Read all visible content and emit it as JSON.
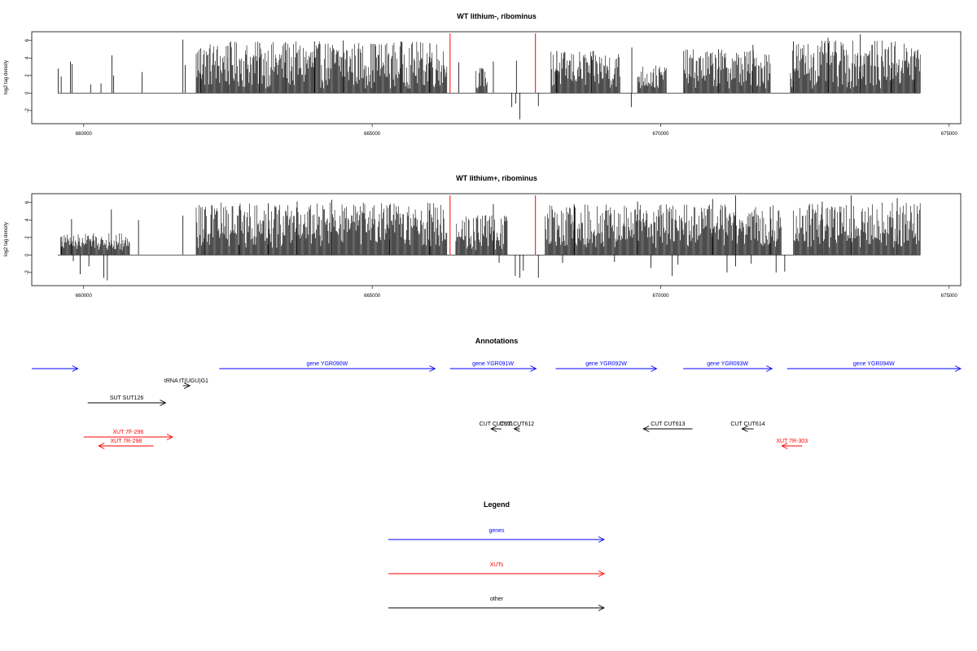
{
  "chart_data": [
    {
      "type": "bar",
      "title": "WT lithium-, ribominus",
      "xlabel": "",
      "ylabel": "log2 tag density",
      "xlim": [
        659100,
        675200
      ],
      "ylim": [
        -3.5,
        7
      ],
      "x_ticks": [
        {
          "value": 660000,
          "label": "660000"
        },
        {
          "value": 665000,
          "label": "665000"
        },
        {
          "value": 670000,
          "label": "670000"
        },
        {
          "value": 675000,
          "label": "675000"
        }
      ],
      "y_ticks": [
        {
          "value": 6,
          "label": "6"
        },
        {
          "value": 4,
          "label": "4"
        },
        {
          "value": 2,
          "label": "2"
        },
        {
          "value": 0,
          "label": "0"
        },
        {
          "value": -2,
          "label": "-2"
        }
      ],
      "baseline_range": [
        659550,
        674500
      ],
      "red_markers": [
        {
          "x": 666350,
          "y": 6.8
        },
        {
          "x": 667830,
          "y": 6.8
        }
      ],
      "positive_spikes": [
        [
          659560,
          2.8
        ],
        [
          659610,
          1.9
        ],
        [
          659770,
          3.6
        ],
        [
          659800,
          3.3
        ],
        [
          660120,
          1.0
        ],
        [
          660300,
          1.1
        ],
        [
          660490,
          4.3
        ],
        [
          660520,
          2.0
        ],
        [
          661010,
          2.4
        ],
        [
          661720,
          6.1
        ],
        [
          661760,
          3.2
        ],
        [
          662030,
          5.1
        ],
        [
          662500,
          5.4
        ],
        [
          663050,
          5.7
        ],
        [
          663500,
          5.8
        ],
        [
          664000,
          5.9
        ],
        [
          664500,
          6.0
        ],
        [
          665050,
          5.6
        ],
        [
          665500,
          5.9
        ],
        [
          666000,
          5.7
        ],
        [
          666500,
          3.5
        ],
        [
          667100,
          3.6
        ],
        [
          667500,
          3.7
        ],
        [
          668200,
          4.8
        ],
        [
          668800,
          4.2
        ],
        [
          669500,
          5.2
        ],
        [
          670400,
          4.8
        ],
        [
          671000,
          5.0
        ],
        [
          671600,
          5.5
        ],
        [
          672300,
          5.9
        ],
        [
          672900,
          6.3
        ],
        [
          673460,
          6.7
        ],
        [
          674000,
          5.8
        ],
        [
          674400,
          4.4
        ]
      ],
      "negative_spikes": [
        [
          667420,
          -1.6
        ],
        [
          667490,
          -1.2
        ],
        [
          667560,
          -3.0
        ],
        [
          667880,
          -1.5
        ],
        [
          669490,
          -1.6
        ]
      ],
      "dense_regions": [
        {
          "from": 661950,
          "to": 666300,
          "min": 0.5,
          "max": 5.9
        },
        {
          "from": 666800,
          "to": 667000,
          "min": 0.5,
          "max": 3.0
        },
        {
          "from": 668100,
          "to": 669300,
          "min": 0.5,
          "max": 4.8
        },
        {
          "from": 669600,
          "to": 670100,
          "min": 0.3,
          "max": 3.2
        },
        {
          "from": 670400,
          "to": 671900,
          "min": 0.5,
          "max": 5.0
        },
        {
          "from": 672250,
          "to": 674500,
          "min": 0.5,
          "max": 6.0
        }
      ]
    },
    {
      "type": "bar",
      "title": "WT lithium+, ribominus",
      "xlabel": "",
      "ylabel": "log2 tag density",
      "xlim": [
        659100,
        675200
      ],
      "ylim": [
        -3.5,
        7
      ],
      "x_ticks": [
        {
          "value": 660000,
          "label": "660000"
        },
        {
          "value": 665000,
          "label": "665000"
        },
        {
          "value": 670000,
          "label": "670000"
        },
        {
          "value": 675000,
          "label": "675000"
        }
      ],
      "y_ticks": [
        {
          "value": 6,
          "label": "6"
        },
        {
          "value": 4,
          "label": "4"
        },
        {
          "value": 2,
          "label": "2"
        },
        {
          "value": 0,
          "label": "0"
        },
        {
          "value": -2,
          "label": "-2"
        }
      ],
      "baseline_range": [
        659550,
        674500
      ],
      "red_markers": [
        {
          "x": 666350,
          "y": 6.8
        },
        {
          "x": 667830,
          "y": 6.8
        }
      ],
      "positive_spikes": [
        [
          659620,
          2.1
        ],
        [
          659790,
          4.1
        ],
        [
          660120,
          1.8
        ],
        [
          660480,
          5.2
        ],
        [
          660950,
          4.0
        ],
        [
          661720,
          4.5
        ],
        [
          662100,
          5.2
        ],
        [
          662700,
          5.6
        ],
        [
          663200,
          5.9
        ],
        [
          663700,
          6.1
        ],
        [
          664300,
          6.3
        ],
        [
          665300,
          5.7
        ],
        [
          666000,
          5.9
        ],
        [
          667100,
          5.8
        ],
        [
          668500,
          5.8
        ],
        [
          669600,
          6.1
        ],
        [
          670900,
          6.4
        ],
        [
          671300,
          6.8
        ],
        [
          671900,
          5.5
        ],
        [
          672800,
          6.1
        ],
        [
          673300,
          6.8
        ],
        [
          674100,
          6.5
        ]
      ],
      "negative_spikes": [
        [
          659820,
          -0.7
        ],
        [
          659940,
          -2.2
        ],
        [
          660090,
          -1.3
        ],
        [
          660350,
          -2.6
        ],
        [
          660410,
          -2.9
        ],
        [
          667200,
          -0.9
        ],
        [
          667480,
          -2.4
        ],
        [
          667560,
          -2.6
        ],
        [
          667620,
          -1.8
        ],
        [
          667880,
          -2.6
        ],
        [
          668300,
          -0.9
        ],
        [
          669200,
          -0.8
        ],
        [
          669830,
          -1.5
        ],
        [
          670200,
          -2.4
        ],
        [
          670300,
          -1.1
        ],
        [
          671150,
          -2.0
        ],
        [
          671300,
          -1.3
        ],
        [
          671570,
          -1.0
        ],
        [
          672000,
          -2.0
        ],
        [
          672150,
          -1.9
        ]
      ],
      "dense_regions": [
        {
          "from": 659600,
          "to": 660800,
          "min": 0.5,
          "max": 2.5
        },
        {
          "from": 661950,
          "to": 666300,
          "min": 0.8,
          "max": 6.0
        },
        {
          "from": 666450,
          "to": 667350,
          "min": 0.5,
          "max": 4.8
        },
        {
          "from": 668000,
          "to": 672100,
          "min": 0.8,
          "max": 5.8
        },
        {
          "from": 672300,
          "to": 674500,
          "min": 0.8,
          "max": 6.0
        }
      ]
    }
  ],
  "annotations": {
    "title": "Annotations",
    "items": [
      {
        "label": "",
        "color": "#0000ff",
        "from": 659100,
        "to": 659900,
        "row": 0,
        "dir": "right"
      },
      {
        "label": "gene YGR090W",
        "color": "#0000ff",
        "from": 662350,
        "to": 666090,
        "row": 0,
        "dir": "right"
      },
      {
        "label": "gene YGR091W",
        "color": "#0000ff",
        "from": 666350,
        "to": 667840,
        "row": 0,
        "dir": "right"
      },
      {
        "label": "gene YGR092W",
        "color": "#0000ff",
        "from": 668180,
        "to": 669930,
        "row": 0,
        "dir": "right"
      },
      {
        "label": "gene YGR093W",
        "color": "#0000ff",
        "from": 670390,
        "to": 671930,
        "row": 0,
        "dir": "right"
      },
      {
        "label": "gene YGR094W",
        "color": "#0000ff",
        "from": 672190,
        "to": 675200,
        "row": 0,
        "dir": "right"
      },
      {
        "label": "tRNA tT(UGU)G1",
        "color": "#000000",
        "from": 661720,
        "to": 661840,
        "row": 1,
        "dir": "right"
      },
      {
        "label": "SUT SUT126",
        "color": "#000000",
        "from": 660070,
        "to": 661420,
        "row": 2,
        "dir": "right"
      },
      {
        "label": "CUT CUT611",
        "color": "#000000",
        "from": 667060,
        "to": 667240,
        "row": 3,
        "dir": "left"
      },
      {
        "label": "CUT CUT612",
        "color": "#000000",
        "from": 667460,
        "to": 667560,
        "row": 3,
        "dir": "left"
      },
      {
        "label": "CUT CUT613",
        "color": "#000000",
        "from": 669700,
        "to": 670550,
        "row": 3,
        "dir": "left"
      },
      {
        "label": "CUT CUT614",
        "color": "#000000",
        "from": 671410,
        "to": 671610,
        "row": 3,
        "dir": "left"
      },
      {
        "label": "XUT 7F-296",
        "color": "#ff0000",
        "from": 660000,
        "to": 661540,
        "row": 4,
        "dir": "right"
      },
      {
        "label": "XUT 7R-298",
        "color": "#ff0000",
        "from": 660260,
        "to": 661210,
        "row": 5,
        "dir": "left"
      },
      {
        "label": "XUT 7R-303",
        "color": "#ff0000",
        "from": 672100,
        "to": 672450,
        "row": 5,
        "dir": "left"
      }
    ]
  },
  "legend": {
    "title": "Legend",
    "items": [
      {
        "label": "genes",
        "color": "#0000ff"
      },
      {
        "label": "XUTs",
        "color": "#ff0000"
      },
      {
        "label": "other",
        "color": "#000000"
      }
    ]
  }
}
